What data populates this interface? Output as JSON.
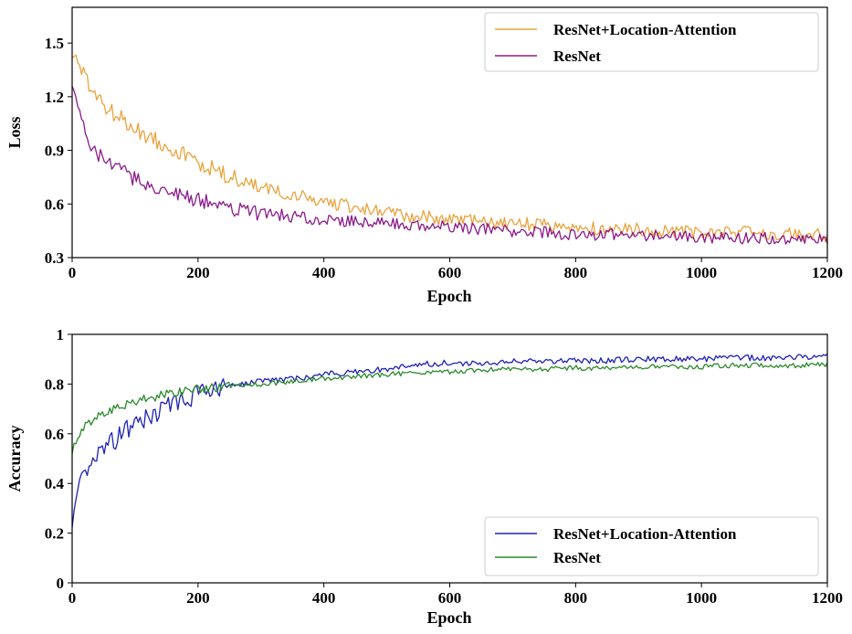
{
  "chart_data": [
    {
      "type": "line",
      "xlabel": "Epoch",
      "ylabel": "Loss",
      "xlim": [
        0,
        1200
      ],
      "ylim": [
        0.3,
        1.7
      ],
      "xticks": [
        "0",
        "200",
        "400",
        "600",
        "800",
        "1000",
        "1200"
      ],
      "yticks": [
        "0.3",
        "0.6",
        "0.9",
        "1.2",
        "1.5"
      ],
      "xtick_values": [
        0,
        200,
        400,
        600,
        800,
        1000,
        1200
      ],
      "ytick_values": [
        0.3,
        0.6,
        0.9,
        1.2,
        1.5
      ],
      "grid": false,
      "legend": "top-right",
      "series": [
        {
          "name": "ResNet+Location-Attention",
          "color": "#e8a33c",
          "x": [
            0,
            10,
            20,
            40,
            60,
            80,
            100,
            150,
            200,
            250,
            300,
            350,
            400,
            450,
            500,
            550,
            600,
            650,
            700,
            750,
            800,
            850,
            900,
            950,
            1000,
            1050,
            1100,
            1150,
            1200
          ],
          "y": [
            1.45,
            1.38,
            1.3,
            1.2,
            1.12,
            1.07,
            1.02,
            0.93,
            0.83,
            0.75,
            0.69,
            0.65,
            0.61,
            0.58,
            0.55,
            0.53,
            0.51,
            0.5,
            0.49,
            0.48,
            0.47,
            0.46,
            0.46,
            0.45,
            0.44,
            0.44,
            0.44,
            0.43,
            0.42
          ]
        },
        {
          "name": "ResNet",
          "color": "#8b1a89",
          "x": [
            0,
            10,
            20,
            40,
            60,
            80,
            100,
            150,
            200,
            250,
            300,
            350,
            400,
            450,
            500,
            550,
            600,
            650,
            700,
            750,
            800,
            850,
            900,
            950,
            1000,
            1050,
            1100,
            1150,
            1200
          ],
          "y": [
            1.3,
            1.12,
            1.0,
            0.88,
            0.82,
            0.78,
            0.74,
            0.67,
            0.62,
            0.58,
            0.55,
            0.53,
            0.51,
            0.5,
            0.49,
            0.48,
            0.47,
            0.46,
            0.45,
            0.44,
            0.43,
            0.43,
            0.42,
            0.42,
            0.41,
            0.41,
            0.41,
            0.41,
            0.4
          ]
        }
      ]
    },
    {
      "type": "line",
      "xlabel": "Epoch",
      "ylabel": "Accuracy",
      "xlim": [
        0,
        1200
      ],
      "ylim": [
        0,
        1
      ],
      "xticks": [
        "0",
        "200",
        "400",
        "600",
        "800",
        "1000",
        "1200"
      ],
      "yticks": [
        "0",
        "0.2",
        "0.4",
        "0.6",
        "0.8",
        "1"
      ],
      "xtick_values": [
        0,
        200,
        400,
        600,
        800,
        1000,
        1200
      ],
      "ytick_values": [
        0,
        0.2,
        0.4,
        0.6,
        0.8,
        1
      ],
      "grid": false,
      "legend": "bottom-right",
      "series": [
        {
          "name": "ResNet+Location-Attention",
          "color": "#1f22b5",
          "x": [
            0,
            5,
            10,
            20,
            40,
            60,
            80,
            100,
            150,
            200,
            250,
            300,
            350,
            400,
            450,
            500,
            550,
            600,
            650,
            700,
            750,
            800,
            850,
            900,
            950,
            1000,
            1050,
            1100,
            1150,
            1200
          ],
          "y": [
            0.2,
            0.32,
            0.38,
            0.44,
            0.51,
            0.56,
            0.6,
            0.64,
            0.71,
            0.76,
            0.79,
            0.81,
            0.82,
            0.84,
            0.85,
            0.86,
            0.88,
            0.885,
            0.885,
            0.89,
            0.89,
            0.895,
            0.895,
            0.9,
            0.9,
            0.9,
            0.905,
            0.905,
            0.91,
            0.91
          ]
        },
        {
          "name": "ResNet",
          "color": "#2a8a2a",
          "x": [
            0,
            5,
            10,
            20,
            40,
            60,
            80,
            100,
            150,
            200,
            250,
            300,
            350,
            400,
            450,
            500,
            550,
            600,
            650,
            700,
            750,
            800,
            850,
            900,
            950,
            1000,
            1050,
            1100,
            1150,
            1200
          ],
          "y": [
            0.52,
            0.56,
            0.6,
            0.63,
            0.67,
            0.69,
            0.71,
            0.73,
            0.76,
            0.78,
            0.79,
            0.8,
            0.81,
            0.82,
            0.83,
            0.84,
            0.845,
            0.85,
            0.855,
            0.86,
            0.86,
            0.865,
            0.865,
            0.87,
            0.87,
            0.87,
            0.875,
            0.875,
            0.875,
            0.88
          ]
        }
      ]
    }
  ]
}
